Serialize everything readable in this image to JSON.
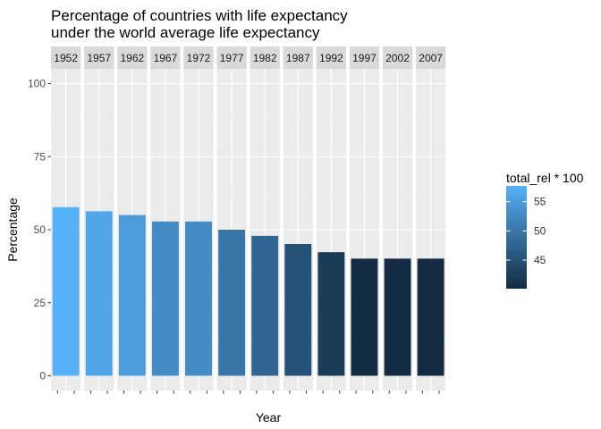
{
  "chart_data": {
    "type": "bar",
    "title_lines": [
      "Percentage of countries with life expectancy",
      "under the world average life expectancy"
    ],
    "xlabel": "Year",
    "ylabel": "Percentage",
    "facets": [
      "1952",
      "1957",
      "1962",
      "1967",
      "1972",
      "1977",
      "1982",
      "1987",
      "1992",
      "1997",
      "2002",
      "2007"
    ],
    "values": [
      57.7,
      56.3,
      55.0,
      52.8,
      52.8,
      50.0,
      47.9,
      45.1,
      42.3,
      40.1,
      40.1,
      40.1
    ],
    "ylim": [
      0,
      100
    ],
    "yticks": [
      0,
      25,
      50,
      75,
      100
    ],
    "grid": true,
    "legend": {
      "title": "total_rel * 100",
      "placement": "right",
      "range": [
        40.1,
        57.7
      ],
      "ticks": [
        45,
        50,
        55
      ],
      "color_low": "#132B43",
      "color_high": "#56B1F7"
    },
    "panel_background": "#EBEBEB",
    "strip_background": "#D9D9D9"
  }
}
